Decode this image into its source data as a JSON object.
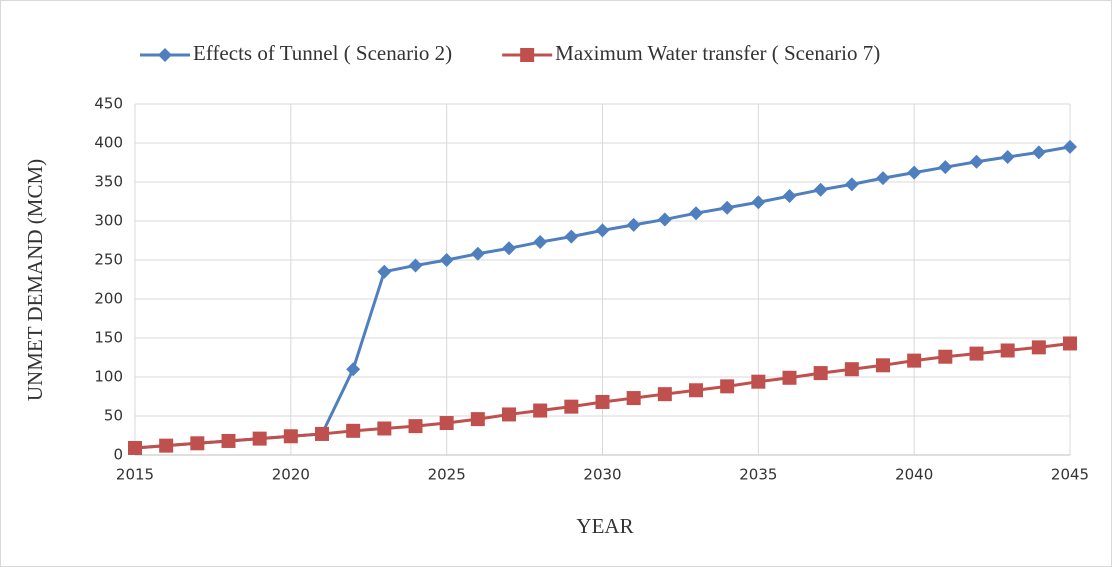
{
  "chart_data": {
    "type": "line",
    "xlabel": "YEAR",
    "ylabel": "UNMET DEMAND (MCM)",
    "x": [
      2015,
      2016,
      2017,
      2018,
      2019,
      2020,
      2021,
      2022,
      2023,
      2024,
      2025,
      2026,
      2027,
      2028,
      2029,
      2030,
      2031,
      2032,
      2033,
      2034,
      2035,
      2036,
      2037,
      2038,
      2039,
      2040,
      2041,
      2042,
      2043,
      2044,
      2045
    ],
    "series": [
      {
        "name": "Effects of Tunnel ( Scenario 2)",
        "color": "#4f7fbf",
        "marker": "diamond",
        "values": [
          9,
          12,
          15,
          18,
          21,
          24,
          27,
          110,
          235,
          243,
          250,
          258,
          265,
          273,
          280,
          288,
          295,
          302,
          310,
          317,
          324,
          332,
          340,
          347,
          355,
          362,
          369,
          376,
          382,
          388,
          395
        ]
      },
      {
        "name": "Maximum Water transfer ( Scenario 7)",
        "color": "#c0504d",
        "marker": "square",
        "values": [
          9,
          12,
          15,
          18,
          21,
          24,
          27,
          31,
          34,
          37,
          41,
          46,
          52,
          57,
          62,
          68,
          73,
          78,
          83,
          88,
          94,
          99,
          105,
          110,
          115,
          121,
          126,
          130,
          134,
          138,
          143
        ]
      }
    ],
    "xlim": [
      2015,
      2045
    ],
    "xticks": [
      2015,
      2020,
      2025,
      2030,
      2035,
      2040,
      2045
    ],
    "ylim": [
      0,
      450
    ],
    "yticks": [
      0,
      50,
      100,
      150,
      200,
      250,
      300,
      350,
      400,
      450
    ],
    "grid": true,
    "legend": "top"
  }
}
